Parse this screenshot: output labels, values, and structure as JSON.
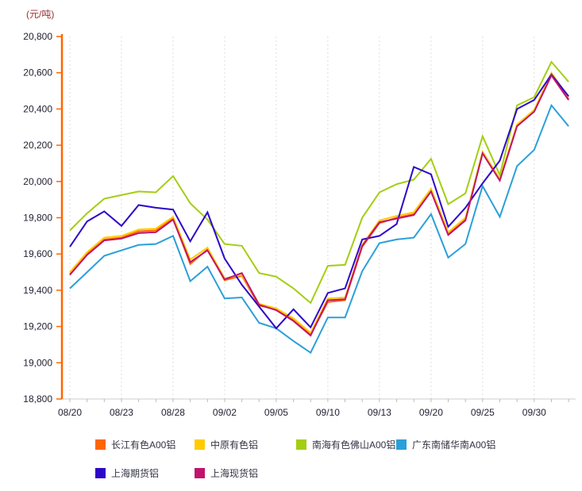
{
  "chart_data": {
    "type": "line",
    "unit_label": "(元/吨)",
    "ylim": [
      18800,
      20800
    ],
    "y_tick_step": 200,
    "y_ticks": [
      18800,
      19000,
      19200,
      19400,
      19600,
      19800,
      20000,
      20200,
      20400,
      20600,
      20800
    ],
    "n_points": 30,
    "x_tick_labels": [
      {
        "index": 0,
        "label": "08/20"
      },
      {
        "index": 3,
        "label": "08/23"
      },
      {
        "index": 6,
        "label": "08/28"
      },
      {
        "index": 9,
        "label": "09/02"
      },
      {
        "index": 12,
        "label": "09/05"
      },
      {
        "index": 15,
        "label": "09/10"
      },
      {
        "index": 18,
        "label": "09/13"
      },
      {
        "index": 21,
        "label": "09/20"
      },
      {
        "index": 24,
        "label": "09/25"
      },
      {
        "index": 27,
        "label": "09/30"
      }
    ],
    "grid": "vertical-dashed",
    "legend_position": "bottom",
    "y_axis_color": "#FF6600",
    "x_axis_color": "#cccccc",
    "gridline_color": "#dddddd",
    "series": [
      {
        "name": "长江有色A00铝",
        "color": "#FF6600",
        "values": [
          19490,
          19600,
          19680,
          19690,
          19725,
          19730,
          19795,
          19545,
          19625,
          19455,
          19480,
          19315,
          19295,
          19235,
          19155,
          19335,
          19345,
          19640,
          19770,
          19800,
          19820,
          19950,
          19710,
          19790,
          20160,
          20010,
          20310,
          20390,
          20590,
          20455
        ]
      },
      {
        "name": "中原有色铝",
        "color": "#FFCC00",
        "values": [
          19500,
          19610,
          19690,
          19700,
          19735,
          19740,
          19805,
          19570,
          19635,
          19465,
          19485,
          19325,
          19300,
          19245,
          19165,
          19355,
          19360,
          19650,
          19785,
          19810,
          19830,
          19960,
          19720,
          19800,
          20165,
          20015,
          20315,
          20395,
          20600,
          20465
        ]
      },
      {
        "name": "南海有色佛山A00铝",
        "color": "#A3CE12",
        "values": [
          19730,
          19825,
          19905,
          19925,
          19945,
          19940,
          20030,
          19880,
          19790,
          19655,
          19645,
          19495,
          19475,
          19410,
          19330,
          19535,
          19540,
          19800,
          19940,
          19985,
          20010,
          20125,
          19875,
          19935,
          20250,
          20035,
          20420,
          20465,
          20660,
          20550
        ]
      },
      {
        "name": "广东南储华南A00铝",
        "color": "#2B9FD9",
        "values": [
          19410,
          19500,
          19590,
          19620,
          19650,
          19655,
          19700,
          19450,
          19530,
          19355,
          19360,
          19220,
          19190,
          19120,
          19055,
          19250,
          19250,
          19505,
          19660,
          19680,
          19690,
          19820,
          19580,
          19655,
          19975,
          19805,
          20085,
          20175,
          20420,
          20305
        ]
      },
      {
        "name": "上海期货铝",
        "color": "#2E07C9",
        "values": [
          19640,
          19780,
          19835,
          19755,
          19870,
          19855,
          19845,
          19670,
          19830,
          19575,
          19430,
          19310,
          19190,
          19295,
          19195,
          19385,
          19410,
          19680,
          19700,
          19765,
          20080,
          20040,
          19750,
          19855,
          19990,
          20115,
          20400,
          20450,
          20590,
          20470
        ]
      },
      {
        "name": "上海现货铝",
        "color": "#C0146C",
        "values": [
          19485,
          19595,
          19675,
          19685,
          19715,
          19720,
          19790,
          19555,
          19620,
          19460,
          19495,
          19320,
          19290,
          19230,
          19150,
          19345,
          19350,
          19645,
          19775,
          19795,
          19815,
          19945,
          19705,
          19785,
          20155,
          20005,
          20305,
          20385,
          20585,
          20450
        ]
      }
    ]
  }
}
